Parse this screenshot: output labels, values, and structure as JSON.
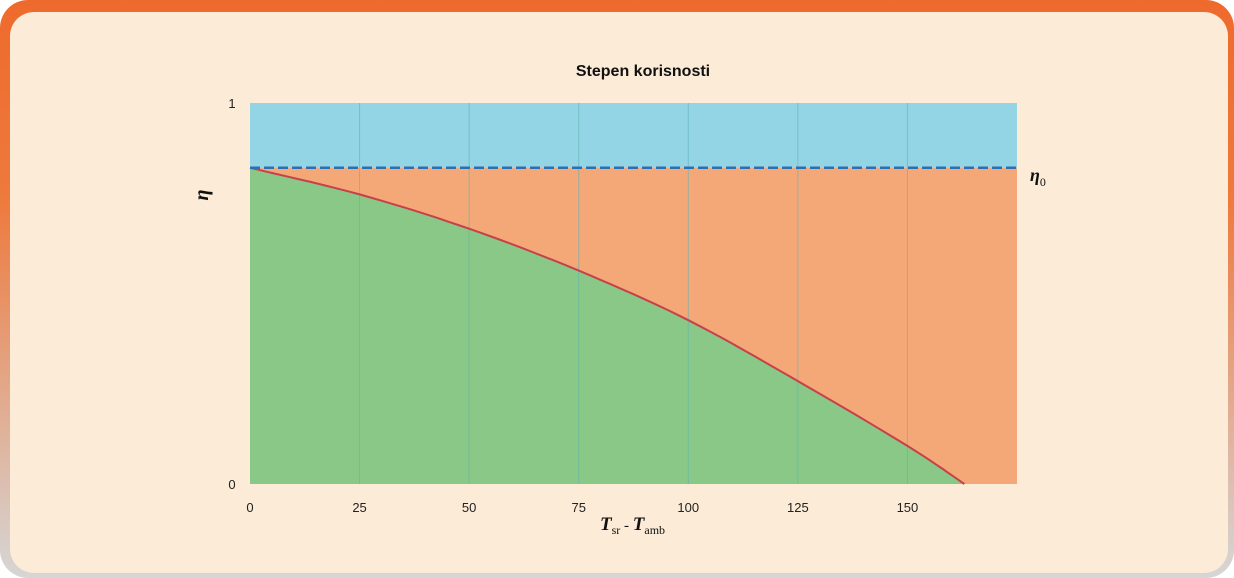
{
  "chart_data": {
    "type": "area",
    "title": "Stepen korisnosti",
    "xlabel": {
      "main": "T",
      "sub": "sr",
      "sep": " - ",
      "main2": "T",
      "sub2": "amb"
    },
    "ylabel": "η",
    "reference_line": {
      "label": "η",
      "label_sub": "0",
      "value": 0.83,
      "style": "dashed"
    },
    "xlim": [
      0,
      175
    ],
    "ylim": [
      0,
      1
    ],
    "x_ticks": [
      "0",
      "25",
      "50",
      "75",
      "100",
      "125",
      "150"
    ],
    "y_ticks": [
      "0",
      "1"
    ],
    "grid": "vertical",
    "series": [
      {
        "x": [
          0,
          25,
          50,
          75,
          100,
          125,
          150,
          163
        ],
        "values": [
          0.83,
          0.76,
          0.67,
          0.56,
          0.43,
          0.27,
          0.1,
          0.0
        ]
      }
    ],
    "colors": {
      "curve": "#c8404a",
      "below_curve": "#89c887",
      "between": "#f4a877",
      "above_ref": "#93d5e5",
      "ref_line": "#2f6eb2",
      "grid": "#5fb3b3"
    }
  }
}
